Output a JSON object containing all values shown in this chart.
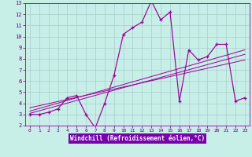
{
  "background_color": "#c8eee8",
  "grid_color": "#aacccc",
  "line_color": "#990099",
  "xlabel": "Windchill (Refroidissement éolien,°C)",
  "xlim": [
    -0.5,
    23.5
  ],
  "ylim": [
    2,
    13
  ],
  "xticks": [
    0,
    1,
    2,
    3,
    4,
    5,
    6,
    7,
    8,
    9,
    10,
    11,
    12,
    13,
    14,
    15,
    16,
    17,
    18,
    19,
    20,
    21,
    22,
    23
  ],
  "yticks": [
    2,
    3,
    4,
    5,
    6,
    7,
    8,
    9,
    10,
    11,
    12,
    13
  ],
  "data_x": [
    0,
    1,
    2,
    3,
    4,
    5,
    6,
    7,
    8,
    9,
    10,
    11,
    12,
    13,
    14,
    15,
    16,
    17,
    18,
    19,
    20,
    21,
    22,
    23
  ],
  "data_y": [
    3.0,
    3.0,
    3.2,
    3.5,
    4.5,
    4.7,
    3.0,
    1.8,
    4.0,
    6.5,
    10.2,
    10.8,
    11.3,
    13.2,
    11.5,
    12.2,
    4.2,
    8.8,
    7.9,
    8.2,
    9.3,
    9.3,
    4.2,
    4.5
  ],
  "trend1_x": [
    0,
    23
  ],
  "trend1_y": [
    3.3,
    8.8
  ],
  "trend2_x": [
    0,
    23
  ],
  "trend2_y": [
    3.6,
    7.9
  ],
  "trend3_x": [
    0,
    23
  ],
  "trend3_y": [
    3.1,
    8.4
  ],
  "xlabel_bg": "#7700aa",
  "xlabel_fg": "white",
  "tick_color": "#660066",
  "spine_color": "#9900aa"
}
